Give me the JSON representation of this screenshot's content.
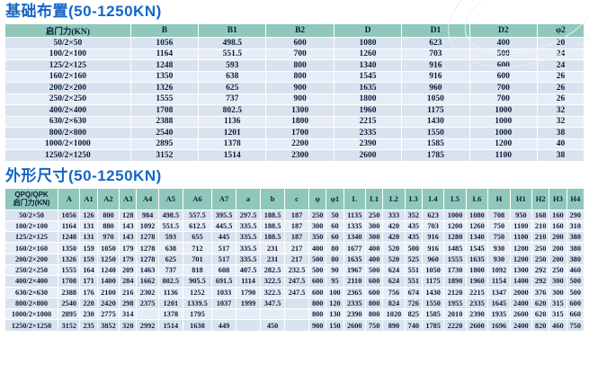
{
  "page": {
    "accent_title_color": "#1466c8",
    "header_fill_color": "#8fc8ba",
    "row_fill_odd": "#d9e3ef",
    "row_fill_even": "#e7edf6"
  },
  "foundation_table": {
    "title": "基础布置(50-1250KN)",
    "col_headers": [
      "启门力(KN)",
      "B",
      "B1",
      "B2",
      "D",
      "D1",
      "D2",
      "φ2"
    ],
    "rows": [
      [
        "50/2×50",
        "1056",
        "498.5",
        "600",
        "1080",
        "623",
        "400",
        "20"
      ],
      [
        "100/2×100",
        "1164",
        "551.5",
        "700",
        "1260",
        "703",
        "500",
        "24"
      ],
      [
        "125/2×125",
        "1248",
        "593",
        "800",
        "1340",
        "916",
        "600",
        "24"
      ],
      [
        "160/2×160",
        "1350",
        "638",
        "800",
        "1545",
        "916",
        "600",
        "26"
      ],
      [
        "200/2×200",
        "1326",
        "625",
        "900",
        "1635",
        "960",
        "700",
        "26"
      ],
      [
        "250/2×250",
        "1555",
        "737",
        "900",
        "1800",
        "1050",
        "700",
        "26"
      ],
      [
        "400/2×400",
        "1708",
        "802.5",
        "1300",
        "1960",
        "1175",
        "1000",
        "32"
      ],
      [
        "630/2×630",
        "2388",
        "1136",
        "1800",
        "2215",
        "1430",
        "1000",
        "32"
      ],
      [
        "800/2×800",
        "2540",
        "1201",
        "1700",
        "2335",
        "1550",
        "1000",
        "38"
      ],
      [
        "1000/2×1000",
        "2895",
        "1378",
        "2200",
        "2390",
        "1585",
        "1200",
        "40"
      ],
      [
        "1250/2×1250",
        "3152",
        "1514",
        "2300",
        "2600",
        "1785",
        "1100",
        "38"
      ]
    ]
  },
  "dimensions_table": {
    "title": "外形尺寸(50-1250KN)",
    "label_header_line1": "QPQ/QPK",
    "label_header_line2": "启门力(KN)",
    "col_headers": [
      "A",
      "A1",
      "A2",
      "A3",
      "A4",
      "A5",
      "A6",
      "A7",
      "a",
      "b",
      "c",
      "φ",
      "φ1",
      "L",
      "L1",
      "L2",
      "L3",
      "L4",
      "L5",
      "L6",
      "H",
      "H1",
      "H2",
      "H3",
      "H4"
    ],
    "rows": [
      [
        "50/2×50",
        "1056",
        "126",
        "800",
        "128",
        "984",
        "498.5",
        "557.5",
        "395.5",
        "297.5",
        "188.5",
        "187",
        "250",
        "50",
        "1135",
        "250",
        "333",
        "352",
        "623",
        "1000",
        "1080",
        "708",
        "950",
        "168",
        "160",
        "290"
      ],
      [
        "100/2×100",
        "1164",
        "131",
        "880",
        "143",
        "1092",
        "551.5",
        "612.5",
        "445.5",
        "335.5",
        "188.5",
        "187",
        "300",
        "60",
        "1335",
        "300",
        "420",
        "435",
        "703",
        "1200",
        "1260",
        "750",
        "1100",
        "210",
        "160",
        "310"
      ],
      [
        "125/2×125",
        "1248",
        "131",
        "970",
        "143",
        "1278",
        "593",
        "655",
        "445",
        "335.5",
        "188.5",
        "187",
        "350",
        "60",
        "1340",
        "300",
        "420",
        "435",
        "916",
        "1280",
        "1340",
        "750",
        "1100",
        "210",
        "200",
        "380"
      ],
      [
        "160/2×160",
        "1350",
        "159",
        "1050",
        "179",
        "1278",
        "638",
        "712",
        "517",
        "335.5",
        "231",
        "217",
        "400",
        "80",
        "1677",
        "400",
        "520",
        "500",
        "916",
        "1485",
        "1545",
        "930",
        "1200",
        "250",
        "200",
        "380"
      ],
      [
        "200/2×200",
        "1326",
        "159",
        "1250",
        "179",
        "1278",
        "625",
        "701",
        "517",
        "335.5",
        "231",
        "217",
        "500",
        "80",
        "1635",
        "400",
        "520",
        "525",
        "960",
        "1555",
        "1635",
        "930",
        "1200",
        "250",
        "200",
        "380"
      ],
      [
        "250/2×250",
        "1555",
        "164",
        "1240",
        "209",
        "1463",
        "737",
        "818",
        "608",
        "407.5",
        "282.5",
        "232.5",
        "500",
        "90",
        "1967",
        "500",
        "624",
        "551",
        "1050",
        "1730",
        "1800",
        "1092",
        "1300",
        "292",
        "250",
        "460"
      ],
      [
        "400/2×400",
        "1708",
        "171",
        "1400",
        "284",
        "1662",
        "802.5",
        "905.5",
        "691.5",
        "1114",
        "322.5",
        "247.5",
        "600",
        "95",
        "2110",
        "600",
        "624",
        "551",
        "1175",
        "1890",
        "1960",
        "1154",
        "1400",
        "292",
        "300",
        "500"
      ],
      [
        "630/2×630",
        "2388",
        "176",
        "2100",
        "216",
        "2302",
        "1136",
        "1252",
        "1033",
        "1790",
        "322.5",
        "247.5",
        "600",
        "100",
        "2365",
        "600",
        "756",
        "674",
        "1430",
        "2120",
        "2215",
        "1347",
        "2000",
        "376",
        "300",
        "500"
      ],
      [
        "800/2×800",
        "2540",
        "220",
        "2420",
        "298",
        "2375",
        "1201",
        "1339.5",
        "1037",
        "1999",
        "347.5",
        "",
        "800",
        "120",
        "2335",
        "800",
        "824",
        "726",
        "1550",
        "1955",
        "2335",
        "1645",
        "2400",
        "620",
        "315",
        "600"
      ],
      [
        "1000/2×1000",
        "2895",
        "230",
        "2775",
        "314",
        "",
        "1378",
        "1795",
        "",
        "",
        "",
        "",
        "800",
        "130",
        "2390",
        "800",
        "1020",
        "825",
        "1585",
        "2010",
        "2390",
        "1935",
        "2600",
        "620",
        "315",
        "660"
      ],
      [
        "1250/2×1250",
        "3152",
        "235",
        "3852",
        "320",
        "2992",
        "1514",
        "1638",
        "449",
        "",
        "450",
        "",
        "900",
        "150",
        "2600",
        "750",
        "890",
        "740",
        "1785",
        "2220",
        "2600",
        "1696",
        "2400",
        "820",
        "460",
        "750"
      ]
    ]
  }
}
